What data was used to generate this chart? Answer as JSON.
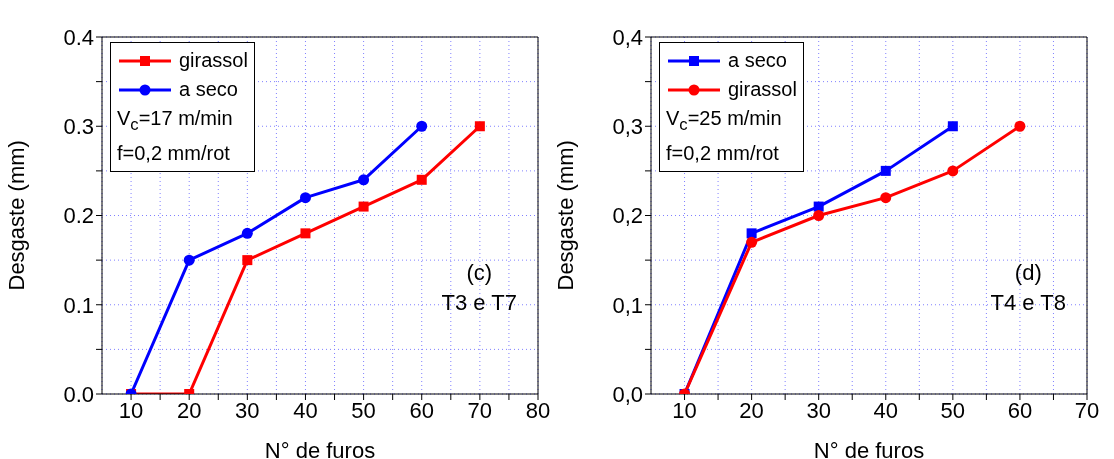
{
  "chart_data": [
    {
      "type": "line",
      "xlabel": "N° de furos",
      "ylabel": "Desgaste (mm)",
      "xlim": [
        5,
        80
      ],
      "xticks": [
        10,
        {
          "value": 15,
          "label": null
        },
        20,
        {
          "value": 25,
          "label": null
        },
        30,
        {
          "value": 35,
          "label": null
        },
        40,
        {
          "value": 45,
          "label": null
        },
        50,
        {
          "value": 55,
          "label": null
        },
        60,
        {
          "value": 65,
          "label": null
        },
        70,
        {
          "value": 75,
          "label": null
        },
        80
      ],
      "ylim": [
        0,
        0.4
      ],
      "yticks": [
        {
          "value": 0,
          "label": "0.0"
        },
        {
          "value": 0.05,
          "label": null
        },
        0.1,
        {
          "value": 0.15,
          "label": null
        },
        0.2,
        {
          "value": 0.25,
          "label": null
        },
        0.3,
        {
          "value": 0.35,
          "label": null
        },
        0.4
      ],
      "grid": true,
      "legend": "top left",
      "line_style": "solid",
      "series": [
        {
          "name": "girassol",
          "color": "#ff0000",
          "marker": "square",
          "x": [
            10,
            20,
            30,
            40,
            50,
            60,
            70
          ],
          "values": [
            0,
            0,
            0.15,
            0.18,
            0.21,
            0.24,
            0.3
          ]
        },
        {
          "name": "a seco",
          "color": "#0000ff",
          "marker": "circle",
          "x": [
            10,
            20,
            30,
            40,
            50,
            60
          ],
          "values": [
            0,
            0.15,
            0.18,
            0.22,
            0.24,
            0.3
          ]
        }
      ],
      "annotations": [
        "V$_{c}$=17 m/min",
        "f=0,2 mm/rot",
        "(c)",
        "T3 e T7"
      ]
    },
    {
      "type": "line",
      "xlabel": "N° de furos",
      "ylabel": "Desgaste (mm)",
      "xlim": [
        5,
        70
      ],
      "xticks": [
        10,
        {
          "value": 15,
          "label": null
        },
        20,
        {
          "value": 25,
          "label": null
        },
        30,
        {
          "value": 35,
          "label": null
        },
        40,
        {
          "value": 45,
          "label": null
        },
        50,
        {
          "value": 55,
          "label": null
        },
        60,
        {
          "value": 65,
          "label": null
        },
        70
      ],
      "ylim": [
        0,
        0.4
      ],
      "yticks": [
        {
          "value": 0,
          "label": "0,0"
        },
        {
          "value": 0.05,
          "label": null
        },
        {
          "value": 0.1,
          "label": "0,1"
        },
        {
          "value": 0.15,
          "label": null
        },
        {
          "value": 0.2,
          "label": "0,2"
        },
        {
          "value": 0.25,
          "label": null
        },
        {
          "value": 0.3,
          "label": "0,3"
        },
        {
          "value": 0.35,
          "label": null
        },
        {
          "value": 0.4,
          "label": "0,4"
        }
      ],
      "grid": true,
      "legend": "top left",
      "line_style": "solid",
      "series": [
        {
          "name": "a seco",
          "color": "#0000ff",
          "marker": "square",
          "x": [
            10,
            20,
            30,
            40,
            50
          ],
          "values": [
            0,
            0.18,
            0.21,
            0.25,
            0.3
          ]
        },
        {
          "name": "girassol",
          "color": "#ff0000",
          "marker": "circle",
          "x": [
            10,
            20,
            30,
            40,
            50,
            60
          ],
          "values": [
            0,
            0.17,
            0.2,
            0.22,
            0.25,
            0.3
          ]
        }
      ],
      "annotations": [
        "V$_{c}$=25 m/min",
        "f=0,2 mm/rot",
        "(d)",
        "T4 e T8"
      ]
    }
  ]
}
